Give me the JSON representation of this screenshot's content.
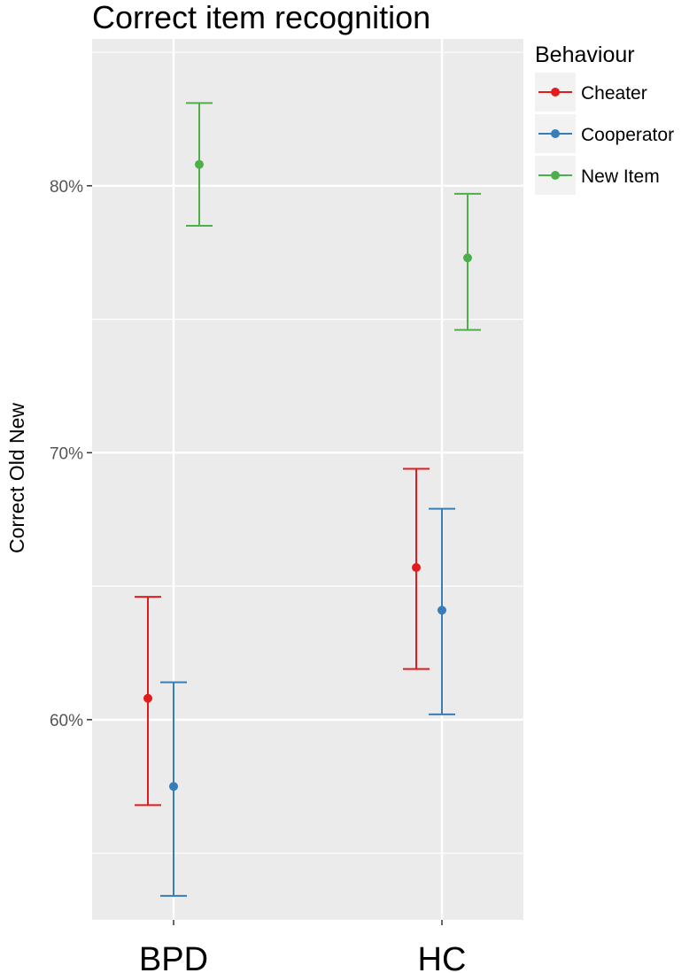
{
  "chart_data": {
    "type": "scatter",
    "title": "Correct item recognition",
    "xlabel": "",
    "ylabel": "Correct Old New",
    "categories": [
      "BPD",
      "HC"
    ],
    "ylim": [
      0.525,
      0.855
    ],
    "yticks": [
      0.6,
      0.7,
      0.8
    ],
    "ytick_labels": [
      "60%",
      "70%",
      "80%"
    ],
    "grid": true,
    "legend": {
      "title": "Behaviour",
      "position": "right"
    },
    "series": [
      {
        "name": "Cheater",
        "color": "#e41a1c",
        "values": [
          0.608,
          0.657
        ],
        "lower": [
          0.568,
          0.619
        ],
        "upper": [
          0.646,
          0.694
        ]
      },
      {
        "name": "Cooperator",
        "color": "#377eb8",
        "values": [
          0.575,
          0.641
        ],
        "lower": [
          0.534,
          0.602
        ],
        "upper": [
          0.614,
          0.679
        ]
      },
      {
        "name": "New Item",
        "color": "#4daf4a",
        "values": [
          0.808,
          0.773
        ],
        "lower": [
          0.785,
          0.746
        ],
        "upper": [
          0.831,
          0.797
        ]
      }
    ]
  }
}
